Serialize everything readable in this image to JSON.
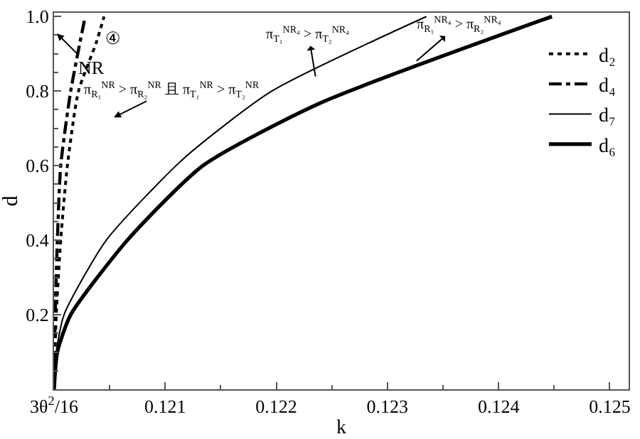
{
  "chart_data": {
    "type": "line",
    "xlabel": "k",
    "ylabel": "d",
    "xlim": [
      0.12,
      0.12517
    ],
    "ylim": [
      0,
      1.01
    ],
    "xticks": [
      {
        "value": 0.12,
        "label": "3θ$^{2}$/16"
      },
      0.121,
      0.122,
      0.123,
      0.124,
      0.125
    ],
    "yticks": [
      0.2,
      0.4,
      0.6,
      0.8,
      {
        "value": 1.0,
        "label": "1.0"
      }
    ],
    "legend": "top right",
    "marker": "none",
    "series": [
      {
        "name": "d₂",
        "color": "#000000",
        "line_style": "dotted",
        "x": [
          0.12,
          0.12002,
          0.12006,
          0.12012,
          0.12022,
          0.12038,
          0.12045
        ],
        "values": [
          0,
          0.2,
          0.4,
          0.6,
          0.8,
          0.93,
          1.0
        ]
      },
      {
        "name": "d₄",
        "color": "#000000",
        "line_style": "dashdot",
        "x": [
          0.12,
          0.12001,
          0.12003,
          0.12006,
          0.12015,
          0.12028
        ],
        "values": [
          0,
          0.2,
          0.4,
          0.6,
          0.8,
          1.0
        ]
      },
      {
        "name": "d₇",
        "color": "#000000",
        "line_style": "solid",
        "x": [
          0.12,
          0.12002,
          0.12009,
          0.12047,
          0.12117,
          0.12196,
          0.12335
        ],
        "values": [
          0,
          0.1,
          0.2,
          0.4,
          0.62,
          0.8,
          1.0
        ]
      },
      {
        "name": "d₆",
        "color": "#000000",
        "line_style": "solid",
        "x": [
          0.12,
          0.12003,
          0.12015,
          0.12066,
          0.12134,
          0.12238,
          0.12448
        ],
        "values": [
          0,
          0.1,
          0.2,
          0.4,
          0.6,
          0.766,
          1.0
        ]
      }
    ],
    "annotations": [
      "④",
      "NR",
      "π$_{R₁}$$^{NR}$ > π$_{R₂}$$^{NR}$ 且 π$_{T₁}$$^{NR}$ > π$_{T₂}$$^{NR}$",
      "π$_{T₁}$$^{NR₄}$ > π$_{T₂}$$^{NR₄}$",
      "π$_{R₁}$$^{NR₄}$ > π$_{R₂}$$^{NR₄}$"
    ]
  }
}
